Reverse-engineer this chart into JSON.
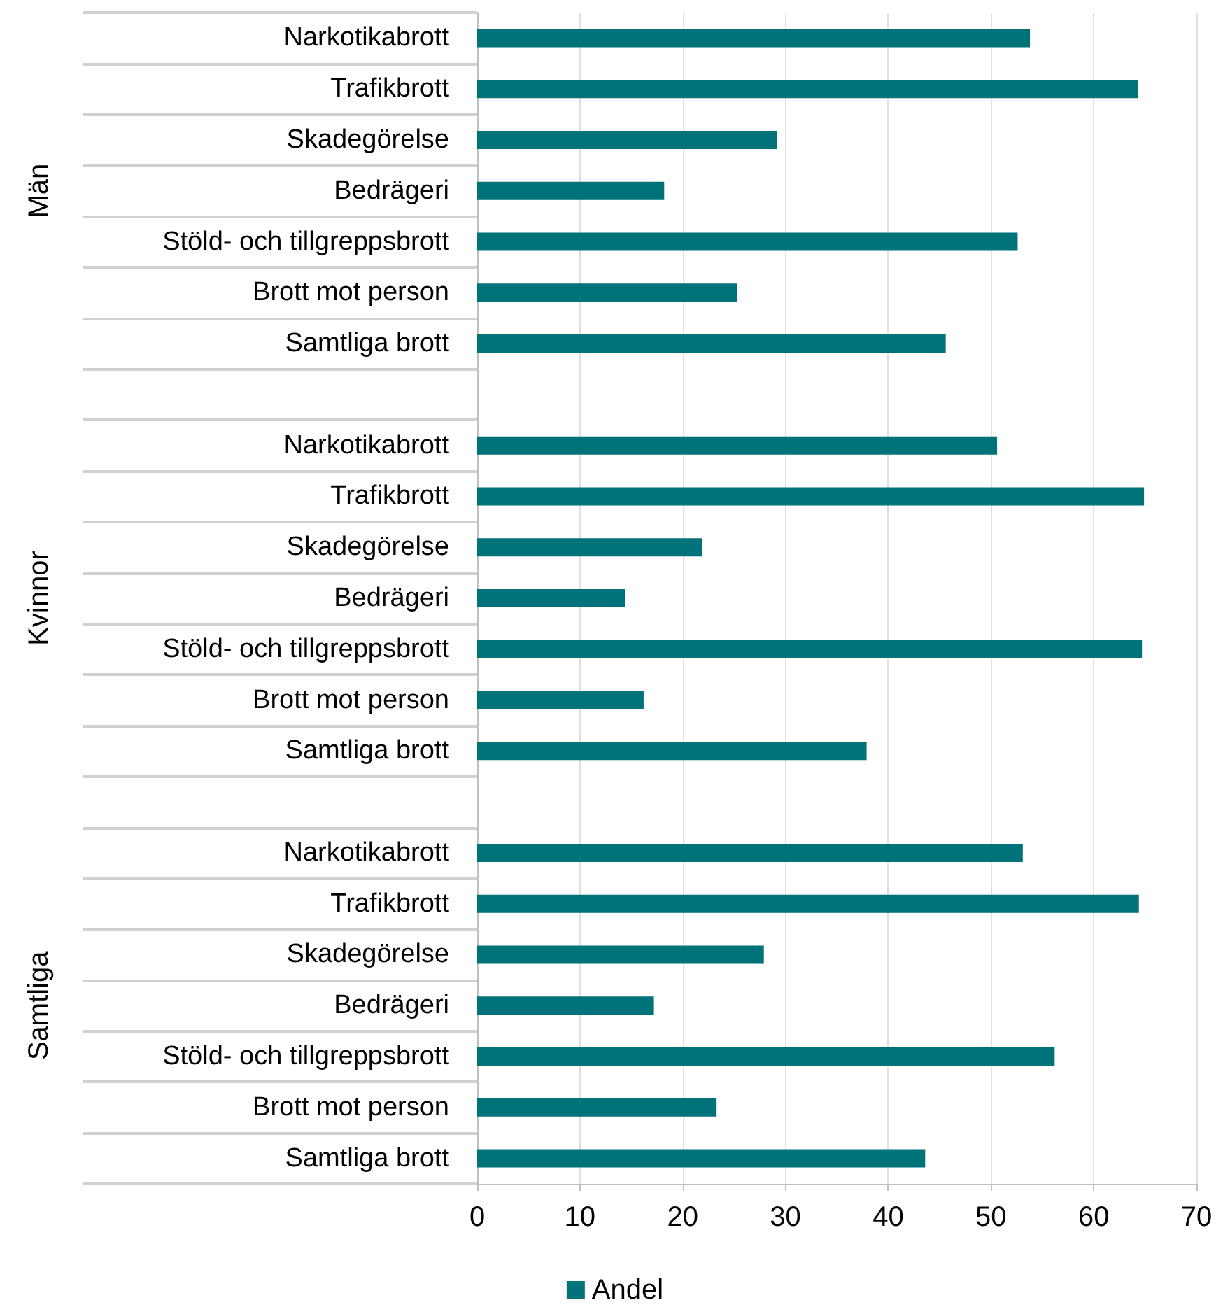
{
  "chart_data": {
    "type": "bar",
    "orientation": "horizontal",
    "categories": [
      "Narkotikabrott",
      "Trafikbrott",
      "Skadegörelse",
      "Bedrägeri",
      "Stöld- och tillgreppsbrott",
      "Brott mot person",
      "Samtliga brott",
      null,
      "Narkotikabrott",
      "Trafikbrott",
      "Skadegörelse",
      "Bedrägeri",
      "Stöld- och tillgreppsbrott",
      "Brott mot person",
      "Samtliga brott",
      null,
      "Narkotikabrott",
      "Trafikbrott",
      "Skadegörelse",
      "Bedrägeri",
      "Stöld- och tillgreppsbrott",
      "Brott mot person",
      "Samtliga brott"
    ],
    "series": [
      {
        "name": "Andel",
        "color": "#00727a",
        "values": [
          53.8,
          64.3,
          29.2,
          18.2,
          52.6,
          25.3,
          45.6,
          null,
          50.6,
          64.9,
          21.9,
          14.4,
          64.7,
          16.2,
          37.9,
          null,
          53.1,
          64.4,
          27.9,
          17.2,
          56.2,
          23.3,
          43.6
        ]
      }
    ],
    "xlim": [
      0,
      70
    ],
    "xticks": [
      0,
      10,
      20,
      30,
      40,
      50,
      60,
      70
    ],
    "grid": "x",
    "legend": "bottom",
    "annotations": [
      "Män",
      "Kvinnor",
      "Samtliga"
    ]
  }
}
